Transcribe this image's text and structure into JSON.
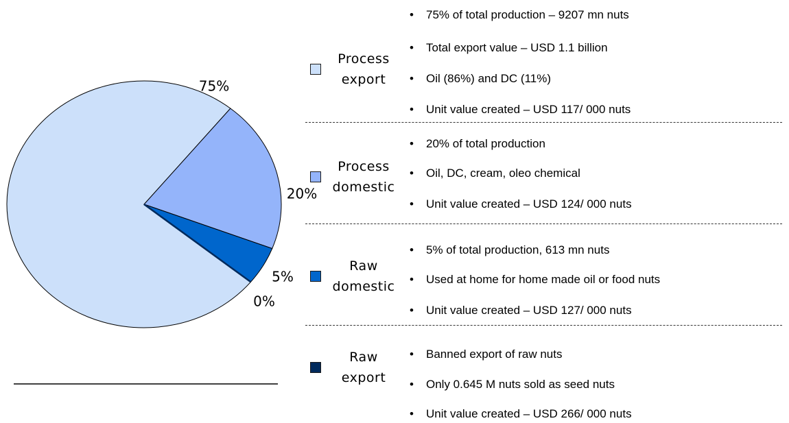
{
  "chart_data": {
    "type": "pie",
    "categories": [
      "Process export",
      "Process domestic",
      "Raw domestic",
      "Raw export"
    ],
    "values": [
      75,
      20,
      5,
      0
    ],
    "value_labels": [
      "75%",
      "20%",
      "5%",
      "0%"
    ],
    "colors": [
      "#cce0fa",
      "#94b4fa",
      "#0066cc",
      "#002a5c"
    ],
    "notes": [
      [
        "75% of total production – 9207 mn nuts",
        "Total export value – USD 1.1 billion",
        "Oil  (86%) and DC (11%)",
        "Unit value created – USD 117/ 000 nuts"
      ],
      [
        "20% of total production",
        "Oil, DC, cream, oleo chemical",
        "Unit value created – USD 124/ 000 nuts"
      ],
      [
        "5% of total production, 613 mn nuts",
        "Used at home for home made oil or food nuts",
        "Unit value created – USD  127/ 000 nuts"
      ],
      [
        "Banned export of raw nuts",
        "Only 0.645 M nuts sold as seed nuts",
        "Unit value created – USD 266/ 000 nuts"
      ]
    ]
  }
}
